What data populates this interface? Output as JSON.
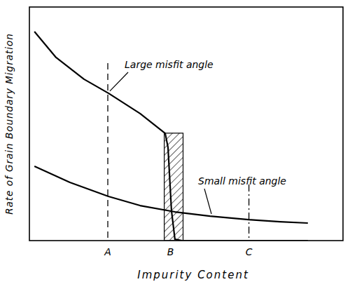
{
  "chart_data": {
    "type": "line",
    "x_label": "Impurity Content",
    "y_label": "Rate of Grain Boundary Migration",
    "xlim": [
      0,
      100
    ],
    "ylim": [
      0,
      100
    ],
    "xticks": [
      {
        "value": 25,
        "label": "A"
      },
      {
        "value": 45,
        "label": "B"
      },
      {
        "value": 70,
        "label": "C"
      }
    ],
    "tick_labels": "x",
    "grid": false,
    "shaded_range": [
      43,
      49
    ],
    "reference_lines": [
      {
        "x": 25,
        "top": 76,
        "line_style": "dashed"
      },
      {
        "x": 70,
        "top": 24,
        "line_style": "dashdot"
      }
    ],
    "series": [
      {
        "name": "Large misfit angle",
        "color": "#000000",
        "line_style": "solid",
        "x": [
          1.6,
          8.5,
          17.4,
          25.2,
          35.3,
          43.3,
          44.2,
          45.3,
          46.4,
          48.7,
          70,
          88.8
        ],
        "values": [
          89.5,
          78.4,
          69.1,
          63.1,
          54.4,
          45.9,
          39.9,
          12.9,
          0.6,
          0,
          0,
          0
        ]
      },
      {
        "name": "Small misfit angle",
        "color": "#000000",
        "line_style": "solid",
        "x": [
          1.6,
          12.9,
          25.2,
          35.3,
          46.4,
          57.6,
          69.9,
          79.9,
          88.8
        ],
        "values": [
          31.8,
          24.9,
          18.9,
          15.0,
          12.3,
          10.5,
          9.0,
          8.1,
          7.5
        ]
      }
    ]
  }
}
